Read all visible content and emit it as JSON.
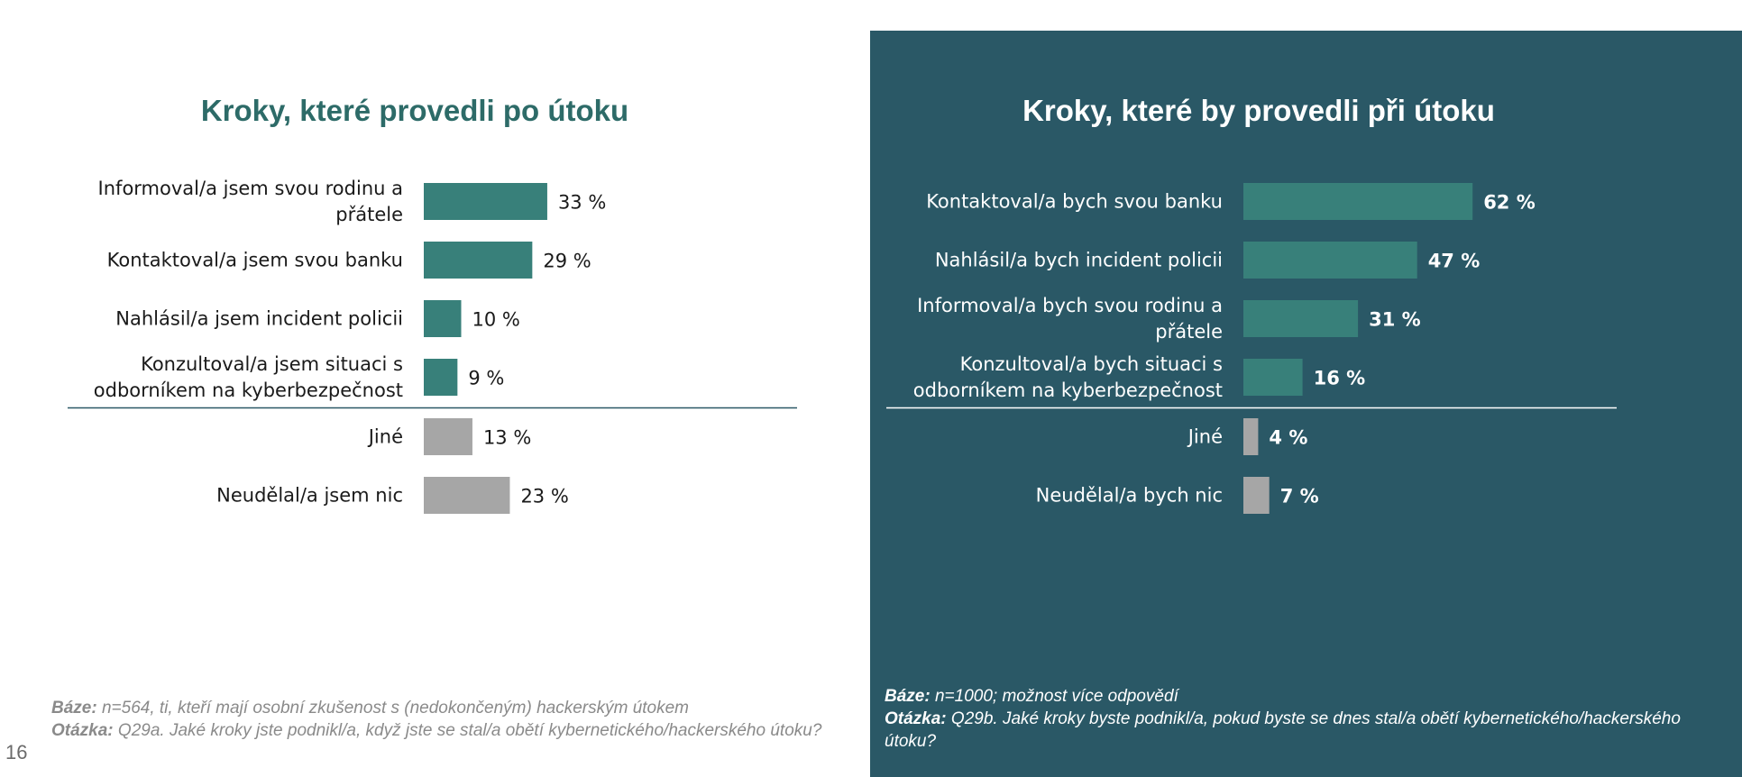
{
  "page_number": "16",
  "colors": {
    "bar_primary": "#38807a",
    "bar_other": "#a6a6a6",
    "left_background": "#ffffff",
    "right_background": "#2a5866",
    "left_title": "#2d6b68",
    "right_title": "#ffffff"
  },
  "left": {
    "notes": {
      "base_label": "Báze:",
      "base_text": " n=564, ti, kteří mají osobní zkušenost s (nedokončeným) hackerským útokem",
      "question_label": "Otázka:",
      "question_text": " Q29a. Jaké kroky jste podnikl/a, když jste se stal/a obětí kybernetického/hackerského útoku?"
    }
  },
  "right": {
    "notes": {
      "base_label": "Báze:",
      "base_text": " n=1000; možnost více odpovědí",
      "question_label": "Otázka:",
      "question_text": " Q29b. Jaké kroky byste podnikl/a, pokud byste se dnes stal/a obětí kybernetického/hackerského útoku?"
    }
  },
  "chart_data": [
    {
      "type": "bar",
      "orientation": "horizontal",
      "title": "Kroky, které provedli po útoku",
      "categories": [
        [
          "Informoval/a jsem svou rodinu a",
          "přátele"
        ],
        [
          "Kontaktoval/a jsem svou banku"
        ],
        [
          "Nahlásil/a jsem incident policii"
        ],
        [
          "Konzultoval/a jsem situaci s",
          "odborníkem na kyberbezpečnost"
        ],
        [
          "Jiné"
        ],
        [
          "Neudělal/a jsem nic"
        ]
      ],
      "values": [
        33,
        29,
        10,
        9,
        13,
        23
      ],
      "value_labels": [
        "33 %",
        "29 %",
        "10 %",
        "9 %",
        "13 %",
        "23 %"
      ],
      "bar_groups": [
        "primary",
        "primary",
        "primary",
        "primary",
        "other",
        "other"
      ],
      "unit": "%",
      "grid": false,
      "legend": "none"
    },
    {
      "type": "bar",
      "orientation": "horizontal",
      "title": "Kroky, které by provedli při útoku",
      "categories": [
        [
          "Kontaktoval/a bych svou banku"
        ],
        [
          "Nahlásil/a bych incident policii"
        ],
        [
          "Informoval/a bych svou rodinu a",
          "přátele"
        ],
        [
          "Konzultoval/a bych situaci s",
          "odborníkem na kyberbezpečnost"
        ],
        [
          "Jiné"
        ],
        [
          "Neudělal/a bych nic"
        ]
      ],
      "values": [
        62,
        47,
        31,
        16,
        4,
        7
      ],
      "value_labels": [
        "62 %",
        "47 %",
        "31 %",
        "16 %",
        "4 %",
        "7 %"
      ],
      "bar_groups": [
        "primary",
        "primary",
        "primary",
        "primary",
        "other",
        "other"
      ],
      "unit": "%",
      "grid": false,
      "legend": "none"
    }
  ]
}
